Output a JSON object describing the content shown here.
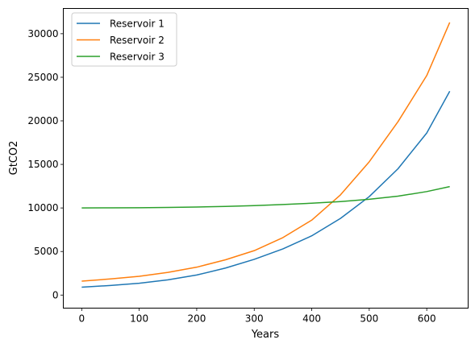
{
  "chart_data": {
    "type": "line",
    "title": "",
    "xlabel": "Years",
    "ylabel": "GtCO2",
    "xlim": [
      -32,
      672
    ],
    "ylim": [
      -1500,
      32900
    ],
    "xticks": [
      0,
      100,
      200,
      300,
      400,
      500,
      600
    ],
    "yticks": [
      0,
      5000,
      10000,
      15000,
      20000,
      25000,
      30000
    ],
    "grid": false,
    "legend_position": "top-left",
    "series": [
      {
        "name": "Reservoir 1",
        "color": "#1f77b4",
        "x": [
          0,
          50,
          100,
          150,
          200,
          250,
          300,
          350,
          400,
          450,
          500,
          550,
          600,
          640
        ],
        "y": [
          900,
          1100,
          1350,
          1750,
          2300,
          3100,
          4100,
          5300,
          6800,
          8800,
          11300,
          14500,
          18600,
          23400
        ]
      },
      {
        "name": "Reservoir 2",
        "color": "#ff7f0e",
        "x": [
          0,
          50,
          100,
          150,
          200,
          250,
          300,
          350,
          400,
          450,
          500,
          550,
          600,
          640
        ],
        "y": [
          1600,
          1850,
          2150,
          2600,
          3200,
          4050,
          5100,
          6600,
          8600,
          11500,
          15300,
          19900,
          25200,
          31300
        ]
      },
      {
        "name": "Reservoir 3",
        "color": "#2ca02c",
        "x": [
          0,
          50,
          100,
          150,
          200,
          250,
          300,
          350,
          400,
          450,
          500,
          550,
          600,
          640
        ],
        "y": [
          10000,
          10010,
          10030,
          10060,
          10110,
          10180,
          10270,
          10390,
          10540,
          10730,
          10990,
          11350,
          11880,
          12450
        ]
      }
    ]
  }
}
